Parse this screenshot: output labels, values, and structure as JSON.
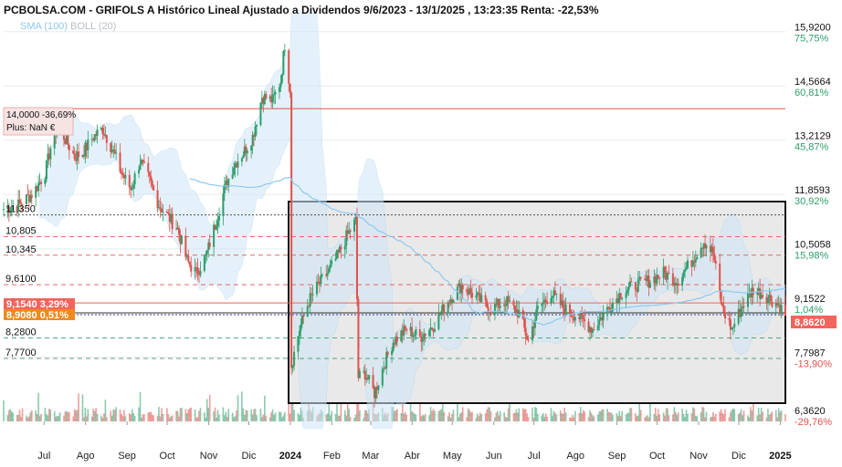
{
  "header": {
    "title": "PCBOLSA.COM - GRIFOLS A Histórico Lineal Ajustado a Dividendos 9/6/2023 - 13/1/2025 , 13:23:35 Renta: -22,53%",
    "legend_sma": "SMA (100)",
    "legend_boll": "BOLL (20)"
  },
  "colors": {
    "up": "#2e9e6b",
    "down": "#e0514c",
    "sma": "#8ec9ee",
    "band": "#cfe6f7",
    "pct_pos": "#2e9e6b",
    "pct_neg": "#e0514c",
    "tag_red": "#f2645c",
    "tag_orange": "#f08a1c",
    "box_fill": "#e9e9e9"
  },
  "right_axis": [
    {
      "price": "15,9200",
      "pct": "75,75%",
      "dir": "pos"
    },
    {
      "price": "14,5664",
      "pct": "60,81%",
      "dir": "pos"
    },
    {
      "price": "13,2129",
      "pct": "45,87%",
      "dir": "pos"
    },
    {
      "price": "11,8593",
      "pct": "30,92%",
      "dir": "pos"
    },
    {
      "price": "10,5058",
      "pct": "15,98%",
      "dir": "pos"
    },
    {
      "price": "9,1522",
      "pct": "1,04%",
      "dir": "pos"
    },
    {
      "price": "7,7987",
      "pct": "-13,90%",
      "dir": "neg"
    },
    {
      "price": "6,3620",
      "pct": "-29,76%",
      "dir": "neg"
    }
  ],
  "current_price_tag": "8,8620",
  "left_levels": [
    "11,350",
    "10,805",
    "10,345",
    "9,6100",
    "8,2800",
    "7,7700"
  ],
  "box_14": {
    "line1": "14,0000  -36,69%",
    "line2": "Plus: NaN €"
  },
  "tag_red": "9,1540  3,29%",
  "tag_orange": "8,9080  0,51%",
  "x_labels": [
    "Jul",
    "Ago",
    "Sep",
    "Oct",
    "Nov",
    "Dic",
    "2024",
    "Feb",
    "Mar",
    "Abr",
    "May",
    "Jun",
    "Jul",
    "Ago",
    "Sep",
    "Oct",
    "Nov",
    "Dic",
    "2025"
  ],
  "chart_data": {
    "type": "candlestick",
    "title": "PCBOLSA.COM - GRIFOLS A Histórico Lineal Ajustado a Dividendos 9/6/2023 - 13/1/2025 , 13:23:35 Renta: -22,53%",
    "x_range": [
      "2023-06-09",
      "2025-01-13"
    ],
    "ylim": [
      6.2,
      16.3
    ],
    "series": [
      {
        "name": "SMA (100)"
      },
      {
        "name": "BOLL (20)"
      }
    ],
    "close_path": [
      [
        "2023-06-09",
        11.5
      ],
      [
        "2023-06-20",
        11.6
      ],
      [
        "2023-07-01",
        11.9
      ],
      [
        "2023-07-10",
        12.4
      ],
      [
        "2023-07-17",
        13.5
      ],
      [
        "2023-07-24",
        13.3
      ],
      [
        "2023-08-01",
        12.8
      ],
      [
        "2023-08-07",
        12.9
      ],
      [
        "2023-08-15",
        13.3
      ],
      [
        "2023-08-22",
        13.5
      ],
      [
        "2023-08-29",
        13.0
      ],
      [
        "2023-09-05",
        12.4
      ],
      [
        "2023-09-12",
        12.0
      ],
      [
        "2023-09-19",
        12.7
      ],
      [
        "2023-09-26",
        12.2
      ],
      [
        "2023-10-03",
        11.6
      ],
      [
        "2023-10-10",
        11.3
      ],
      [
        "2023-10-17",
        11.0
      ],
      [
        "2023-10-24",
        10.2
      ],
      [
        "2023-10-31",
        9.9
      ],
      [
        "2023-11-07",
        10.3
      ],
      [
        "2023-11-14",
        11.1
      ],
      [
        "2023-11-21",
        12.0
      ],
      [
        "2023-11-28",
        12.6
      ],
      [
        "2023-12-05",
        12.9
      ],
      [
        "2023-12-12",
        13.3
      ],
      [
        "2023-12-19",
        14.3
      ],
      [
        "2023-12-27",
        14.2
      ],
      [
        "2024-01-02",
        14.7
      ],
      [
        "2024-01-05",
        15.6
      ],
      [
        "2024-01-09",
        14.5
      ],
      [
        "2024-01-10",
        7.6
      ],
      [
        "2024-01-16",
        8.5
      ],
      [
        "2024-01-23",
        9.2
      ],
      [
        "2024-01-30",
        9.6
      ],
      [
        "2024-02-06",
        9.9
      ],
      [
        "2024-02-13",
        10.3
      ],
      [
        "2024-02-20",
        10.8
      ],
      [
        "2024-02-27",
        11.2
      ],
      [
        "2024-02-29",
        7.3
      ],
      [
        "2024-03-05",
        7.4
      ],
      [
        "2024-03-12",
        6.9
      ],
      [
        "2024-03-19",
        7.6
      ],
      [
        "2024-03-26",
        8.2
      ],
      [
        "2024-04-05",
        8.5
      ],
      [
        "2024-04-15",
        8.3
      ],
      [
        "2024-04-25",
        8.6
      ],
      [
        "2024-05-06",
        9.2
      ],
      [
        "2024-05-16",
        9.6
      ],
      [
        "2024-05-27",
        9.3
      ],
      [
        "2024-06-07",
        9.0
      ],
      [
        "2024-06-18",
        9.2
      ],
      [
        "2024-06-28",
        8.9
      ],
      [
        "2024-07-05",
        8.2
      ],
      [
        "2024-07-12",
        9.0
      ],
      [
        "2024-07-22",
        9.4
      ],
      [
        "2024-08-01",
        9.0
      ],
      [
        "2024-08-12",
        8.8
      ],
      [
        "2024-08-22",
        8.5
      ],
      [
        "2024-09-02",
        9.0
      ],
      [
        "2024-09-12",
        9.4
      ],
      [
        "2024-09-23",
        9.6
      ],
      [
        "2024-10-03",
        9.7
      ],
      [
        "2024-10-14",
        9.9
      ],
      [
        "2024-10-24",
        9.7
      ],
      [
        "2024-11-04",
        10.2
      ],
      [
        "2024-11-13",
        10.7
      ],
      [
        "2024-11-20",
        10.4
      ],
      [
        "2024-11-27",
        9.0
      ],
      [
        "2024-12-04",
        8.5
      ],
      [
        "2024-12-12",
        9.1
      ],
      [
        "2024-12-20",
        9.5
      ],
      [
        "2024-12-31",
        9.3
      ],
      [
        "2025-01-08",
        9.1
      ],
      [
        "2025-01-13",
        8.86
      ]
    ]
  }
}
